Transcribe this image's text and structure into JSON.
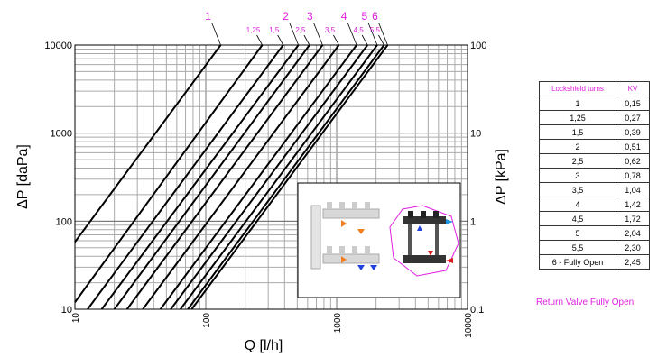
{
  "chart_data": {
    "type": "line",
    "title": "",
    "xlabel": "Q [l/h]",
    "ylabel": "ΔP [daPa]",
    "ylabel_right": "ΔP [kPa]",
    "x_scale": "log",
    "y_scale": "log",
    "xlim": [
      10,
      10000
    ],
    "ylim": [
      10,
      10000
    ],
    "ylim_right": [
      0.1,
      100
    ],
    "grid": true,
    "x_ticks": [
      "10",
      "100",
      "1000",
      "10000"
    ],
    "y_ticks": [
      "10",
      "100",
      "1000",
      "10000"
    ],
    "y_ticks_right": [
      "0,1",
      "1",
      "10",
      "100"
    ],
    "series": [
      {
        "name": "1",
        "kv": 0.15,
        "points": [
          [
            10,
            58
          ],
          [
            130,
            10000
          ]
        ]
      },
      {
        "name": "1,25",
        "kv": 0.27,
        "points": [
          [
            10,
            12
          ],
          [
            270,
            10000
          ]
        ]
      },
      {
        "name": "1,5",
        "kv": 0.39,
        "points": [
          [
            12.5,
            10
          ],
          [
            390,
            10000
          ]
        ]
      },
      {
        "name": "2",
        "kv": 0.51,
        "points": [
          [
            16,
            10
          ],
          [
            510,
            10000
          ]
        ]
      },
      {
        "name": "2,5",
        "kv": 0.62,
        "points": [
          [
            20,
            10
          ],
          [
            620,
            10000
          ]
        ]
      },
      {
        "name": "3",
        "kv": 0.78,
        "points": [
          [
            25,
            10
          ],
          [
            780,
            10000
          ]
        ]
      },
      {
        "name": "3,5",
        "kv": 1.04,
        "points": [
          [
            33,
            10
          ],
          [
            1040,
            10000
          ]
        ]
      },
      {
        "name": "4",
        "kv": 1.42,
        "points": [
          [
            45,
            10
          ],
          [
            1420,
            10000
          ]
        ]
      },
      {
        "name": "4,5",
        "kv": 1.72,
        "points": [
          [
            54,
            10
          ],
          [
            1720,
            10000
          ]
        ]
      },
      {
        "name": "5",
        "kv": 2.04,
        "points": [
          [
            64,
            10
          ],
          [
            2040,
            10000
          ]
        ]
      },
      {
        "name": "5,5",
        "kv": 2.3,
        "points": [
          [
            73,
            10
          ],
          [
            2300,
            10000
          ]
        ]
      },
      {
        "name": "6",
        "kv": 2.45,
        "points": [
          [
            78,
            10
          ],
          [
            2450,
            10000
          ]
        ]
      }
    ],
    "colors": {
      "lines": "#000000",
      "labels": "#e020e0",
      "grid": "#999999"
    }
  },
  "table": {
    "headers": [
      "Lockshield turns",
      "KV"
    ],
    "rows": [
      [
        "1",
        "0,15"
      ],
      [
        "1,25",
        "0,27"
      ],
      [
        "1,5",
        "0,39"
      ],
      [
        "2",
        "0,51"
      ],
      [
        "2,5",
        "0,62"
      ],
      [
        "3",
        "0,78"
      ],
      [
        "3,5",
        "1,04"
      ],
      [
        "4",
        "1,42"
      ],
      [
        "4,5",
        "1,72"
      ],
      [
        "5",
        "2,04"
      ],
      [
        "5,5",
        "2,30"
      ],
      [
        "6 - Fully Open",
        "2,45"
      ]
    ]
  },
  "note": "Return Valve Fully Open",
  "inset": {
    "description_icon": "manifold-diagram-icon"
  }
}
